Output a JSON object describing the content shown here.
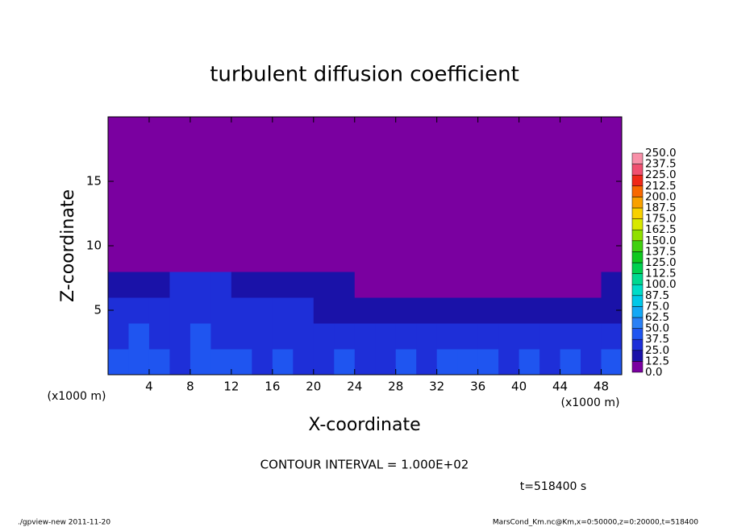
{
  "chart_data": {
    "type": "contour",
    "title": "turbulent diffusion coefficient",
    "x_label": "X-coordinate",
    "y_label": "Z-coordinate",
    "x_unit": "(x1000 m)",
    "y_unit": "(x1000 m)",
    "note": "CONTOUR INTERVAL = 1.000E+02",
    "time": "t=518400 s",
    "footer_left": "./gpview-new  2011-11-20",
    "footer_right": "MarsCond_Km.nc@Km,x=0:50000,z=0:20000,t=518400",
    "xlim": [
      0,
      50
    ],
    "ylim": [
      0,
      20
    ],
    "xticks": [
      4,
      8,
      12,
      16,
      20,
      24,
      28,
      32,
      36,
      40,
      44,
      48
    ],
    "yticks": [
      5,
      10,
      15
    ],
    "x": [
      1,
      3,
      5,
      7,
      9,
      11,
      13,
      15,
      17,
      19,
      21,
      23,
      25,
      27,
      29,
      31,
      33,
      35,
      37,
      39,
      41,
      43,
      45,
      47,
      49
    ],
    "y": [
      1,
      3,
      5,
      7,
      9,
      11,
      13,
      15,
      17,
      19
    ],
    "z": [
      [
        40,
        45,
        40,
        35,
        45,
        40,
        38,
        35,
        40,
        35,
        35,
        38,
        35,
        30,
        40,
        35,
        40,
        38,
        40,
        35,
        38,
        35,
        40,
        35,
        40
      ],
      [
        35,
        40,
        30,
        35,
        40,
        35,
        30,
        30,
        35,
        30,
        28,
        30,
        25,
        28,
        30,
        28,
        30,
        30,
        28,
        30,
        30,
        28,
        30,
        30,
        30
      ],
      [
        30,
        35,
        25,
        30,
        35,
        30,
        25,
        25,
        28,
        25,
        22,
        20,
        20,
        15,
        15,
        18,
        20,
        20,
        18,
        20,
        18,
        20,
        18,
        20,
        20
      ],
      [
        20,
        20,
        20,
        25,
        30,
        25,
        20,
        20,
        18,
        15,
        15,
        15,
        10,
        8,
        5,
        5,
        5,
        5,
        5,
        5,
        5,
        5,
        5,
        5,
        15
      ],
      [
        0,
        0,
        5,
        10,
        10,
        5,
        5,
        0,
        0,
        0,
        0,
        0,
        0,
        0,
        0,
        0,
        0,
        0,
        0,
        0,
        0,
        0,
        0,
        0,
        0
      ],
      [
        0,
        0,
        0,
        0,
        0,
        0,
        0,
        0,
        0,
        0,
        0,
        0,
        0,
        0,
        0,
        0,
        0,
        0,
        0,
        0,
        0,
        0,
        0,
        0,
        0
      ],
      [
        0,
        0,
        0,
        0,
        0,
        0,
        0,
        0,
        0,
        0,
        0,
        0,
        0,
        0,
        0,
        0,
        0,
        0,
        0,
        0,
        0,
        0,
        0,
        0,
        0
      ],
      [
        0,
        0,
        0,
        0,
        0,
        0,
        0,
        0,
        0,
        0,
        0,
        0,
        0,
        0,
        0,
        0,
        0,
        0,
        0,
        0,
        0,
        0,
        0,
        0,
        0
      ],
      [
        0,
        0,
        0,
        0,
        0,
        0,
        0,
        0,
        0,
        0,
        0,
        0,
        0,
        0,
        0,
        0,
        0,
        0,
        0,
        0,
        0,
        0,
        0,
        0,
        0
      ],
      [
        0,
        0,
        0,
        0,
        0,
        0,
        0,
        0,
        0,
        0,
        0,
        0,
        0,
        0,
        0,
        0,
        0,
        0,
        0,
        0,
        0,
        0,
        0,
        0,
        0
      ]
    ],
    "levels": [
      {
        "value": 0,
        "label": "0.0"
      },
      {
        "value": 12.5,
        "label": "12.5"
      },
      {
        "value": 25,
        "label": "25.0"
      },
      {
        "value": 37.5,
        "label": "37.5"
      },
      {
        "value": 50,
        "label": "50.0"
      },
      {
        "value": 62.5,
        "label": "62.5"
      },
      {
        "value": 75,
        "label": "75.0"
      },
      {
        "value": 87.5,
        "label": "87.5"
      },
      {
        "value": 100,
        "label": "100.0"
      },
      {
        "value": 112.5,
        "label": "112.5"
      },
      {
        "value": 125,
        "label": "125.0"
      },
      {
        "value": 137.5,
        "label": "137.5"
      },
      {
        "value": 150,
        "label": "150.0"
      },
      {
        "value": 162.5,
        "label": "162.5"
      },
      {
        "value": 175,
        "label": "175.0"
      },
      {
        "value": 187.5,
        "label": "187.5"
      },
      {
        "value": 200,
        "label": "200.0"
      },
      {
        "value": 212.5,
        "label": "212.5"
      },
      {
        "value": 225,
        "label": "225.0"
      },
      {
        "value": 237.5,
        "label": "237.5"
      },
      {
        "value": 250,
        "label": "250.0"
      }
    ],
    "colors": [
      "#7a00a0",
      "#1a12a8",
      "#1e2fd8",
      "#1f55f0",
      "#2a80f5",
      "#14a8f5",
      "#00c8e8",
      "#00dcc8",
      "#00d890",
      "#00d050",
      "#10c820",
      "#40d010",
      "#90e000",
      "#d8e800",
      "#f8d000",
      "#f8a000",
      "#f86800",
      "#f02818",
      "#f05070",
      "#f890a8"
    ]
  }
}
